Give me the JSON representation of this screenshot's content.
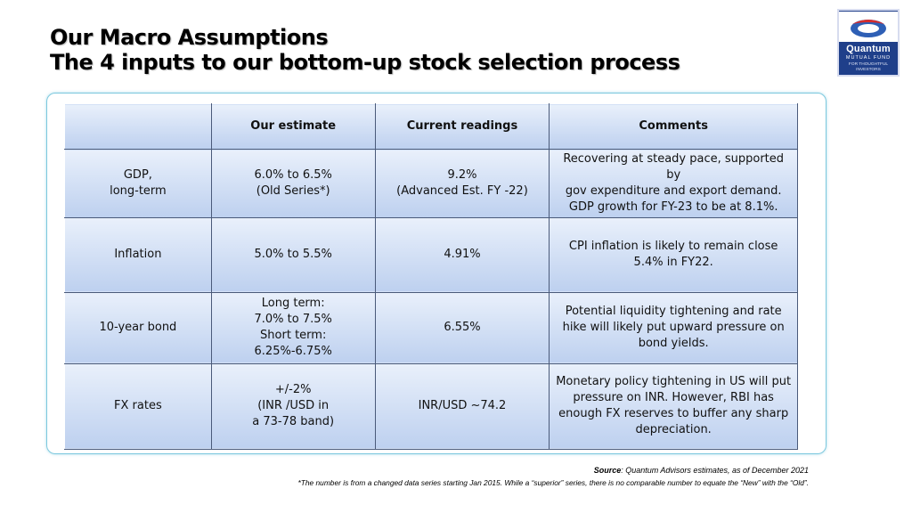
{
  "title": {
    "line1": "Our Macro Assumptions",
    "line2": "The 4 inputs to our bottom-up stock selection process"
  },
  "logo": {
    "brand": "Quantum",
    "subtitle": "MUTUAL FUND",
    "tagline": "FOR THOUGHTFUL INVESTORS",
    "colors": {
      "background": "#1f3f8a",
      "emblem_red": "#d62d2d",
      "emblem_blue": "#2e5fb5"
    }
  },
  "table": {
    "headers": [
      "",
      "Our estimate",
      "Current readings",
      "Comments"
    ],
    "rows": [
      {
        "label": [
          "GDP,",
          "long-term"
        ],
        "estimate": [
          "6.0% to 6.5%",
          "(Old Series*)"
        ],
        "current": [
          "9.2%",
          "(Advanced Est. FY -22)"
        ],
        "comments": [
          "Recovering at steady pace, supported by",
          "gov expenditure and export demand.",
          "GDP growth for FY-23 to be at 8.1%."
        ]
      },
      {
        "label": [
          "Inflation"
        ],
        "estimate": [
          "5.0% to 5.5%"
        ],
        "current": [
          "4.91%"
        ],
        "comments": [
          "CPI inflation is likely to remain close",
          "5.4% in FY22."
        ]
      },
      {
        "label": [
          "10-year bond"
        ],
        "estimate": [
          "Long term:",
          "7.0% to 7.5%",
          "Short term:",
          "6.25%-6.75%"
        ],
        "current": [
          "6.55%"
        ],
        "comments": [
          "Potential liquidity tightening and rate",
          "hike will likely put upward pressure on",
          "bond yields."
        ]
      },
      {
        "label": [
          "FX rates"
        ],
        "estimate": [
          "+/-2%",
          "(INR /USD in",
          "a 73-78 band)"
        ],
        "current": [
          "INR/USD ~74.2"
        ],
        "comments": [
          "Monetary policy tightening in US will put",
          "pressure on INR. However, RBI has",
          "enough FX reserves to buffer any sharp",
          "depreciation."
        ]
      }
    ]
  },
  "source": {
    "label": "Source",
    "text": ": Quantum Advisors estimates, as of  December 2021"
  },
  "footnote": "*The number is from a changed data series starting Jan 2015. While a “superior” series, there is no comparable number to equate the “New” with the “Old”."
}
